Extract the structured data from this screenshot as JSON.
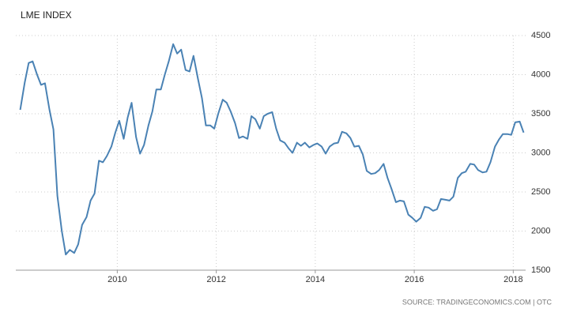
{
  "chart_data": {
    "type": "line",
    "title": "LME INDEX",
    "source": "SOURCE: TRADINGECONOMICS.COM | OTC",
    "x": [
      2008.04,
      2008.13,
      2008.21,
      2008.29,
      2008.38,
      2008.46,
      2008.54,
      2008.63,
      2008.71,
      2008.79,
      2008.88,
      2008.96,
      2009.04,
      2009.13,
      2009.21,
      2009.29,
      2009.38,
      2009.46,
      2009.54,
      2009.63,
      2009.71,
      2009.79,
      2009.88,
      2009.96,
      2010.04,
      2010.13,
      2010.21,
      2010.29,
      2010.38,
      2010.46,
      2010.54,
      2010.63,
      2010.71,
      2010.79,
      2010.88,
      2010.96,
      2011.04,
      2011.13,
      2011.21,
      2011.29,
      2011.38,
      2011.46,
      2011.54,
      2011.63,
      2011.71,
      2011.79,
      2011.88,
      2011.96,
      2012.04,
      2012.13,
      2012.21,
      2012.29,
      2012.38,
      2012.46,
      2012.54,
      2012.63,
      2012.71,
      2012.79,
      2012.88,
      2012.96,
      2013.04,
      2013.13,
      2013.21,
      2013.29,
      2013.38,
      2013.46,
      2013.54,
      2013.63,
      2013.71,
      2013.79,
      2013.88,
      2013.96,
      2014.04,
      2014.13,
      2014.21,
      2014.29,
      2014.38,
      2014.46,
      2014.54,
      2014.63,
      2014.71,
      2014.79,
      2014.88,
      2014.96,
      2015.04,
      2015.13,
      2015.21,
      2015.29,
      2015.38,
      2015.46,
      2015.54,
      2015.63,
      2015.71,
      2015.79,
      2015.88,
      2015.96,
      2016.04,
      2016.13,
      2016.21,
      2016.29,
      2016.38,
      2016.46,
      2016.54,
      2016.63,
      2016.71,
      2016.79,
      2016.88,
      2016.96,
      2017.04,
      2017.13,
      2017.21,
      2017.29,
      2017.38,
      2017.46,
      2017.54,
      2017.63,
      2017.71,
      2017.79,
      2017.88,
      2017.96,
      2018.04,
      2018.13,
      2018.21
    ],
    "series": [
      {
        "name": "LME Index",
        "color": "#4a82b4",
        "values": [
          3550,
          3900,
          4150,
          4170,
          4000,
          3870,
          3890,
          3550,
          3300,
          2450,
          2000,
          1700,
          1760,
          1720,
          1830,
          2080,
          2180,
          2390,
          2480,
          2900,
          2880,
          2960,
          3080,
          3260,
          3410,
          3180,
          3450,
          3640,
          3200,
          2990,
          3100,
          3350,
          3530,
          3810,
          3810,
          4000,
          4170,
          4390,
          4270,
          4320,
          4060,
          4040,
          4240,
          3950,
          3700,
          3350,
          3350,
          3310,
          3500,
          3680,
          3640,
          3530,
          3380,
          3190,
          3210,
          3180,
          3470,
          3430,
          3310,
          3470,
          3500,
          3520,
          3310,
          3160,
          3130,
          3060,
          3000,
          3130,
          3090,
          3130,
          3070,
          3100,
          3120,
          3080,
          2990,
          3080,
          3120,
          3130,
          3270,
          3250,
          3190,
          3080,
          3090,
          2980,
          2770,
          2730,
          2740,
          2780,
          2860,
          2680,
          2540,
          2370,
          2390,
          2380,
          2210,
          2170,
          2120,
          2170,
          2310,
          2300,
          2260,
          2280,
          2410,
          2400,
          2390,
          2440,
          2680,
          2740,
          2760,
          2860,
          2850,
          2780,
          2750,
          2760,
          2880,
          3080,
          3170,
          3240,
          3240,
          3230,
          3390,
          3400,
          3260
        ]
      }
    ],
    "xlim": [
      2007.95,
      2018.25
    ],
    "xticks": [
      2010,
      2012,
      2014,
      2016,
      2018
    ],
    "ylim": [
      1500,
      4500
    ],
    "yticks": [
      1500,
      2000,
      2500,
      3000,
      3500,
      4000,
      4500
    ],
    "grid": true
  }
}
